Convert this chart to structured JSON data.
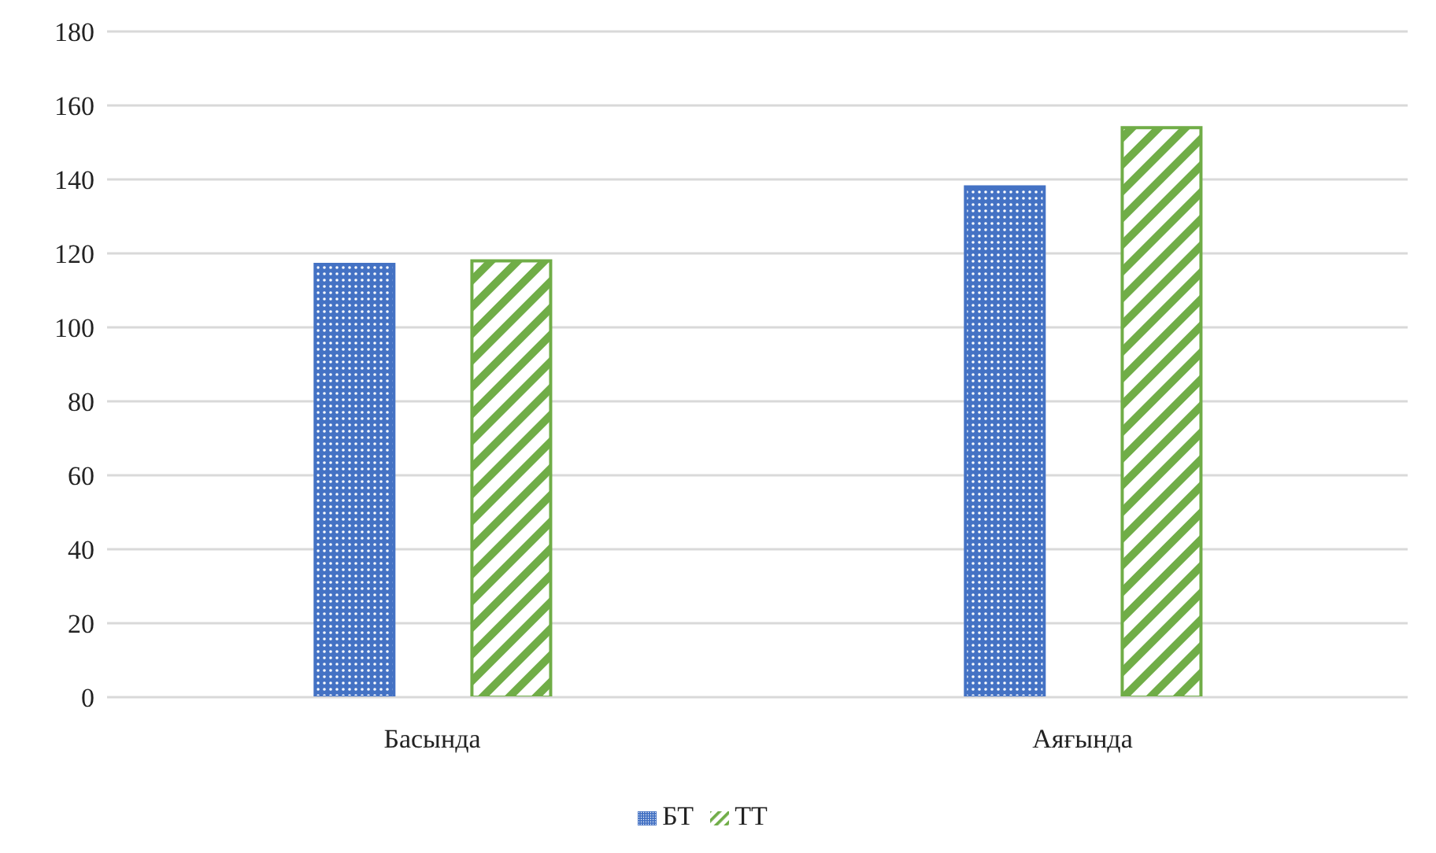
{
  "chart_data": {
    "type": "bar",
    "categories": [
      "Басында",
      "Аяғында"
    ],
    "series": [
      {
        "name": "БТ",
        "color": "#4472c4",
        "values": [
          117,
          138
        ]
      },
      {
        "name": "ТТ",
        "color": "#70ad47",
        "values": [
          118,
          154
        ]
      }
    ],
    "ylim": [
      0,
      180
    ],
    "yticks": [
      0,
      20,
      40,
      60,
      80,
      100,
      120,
      140,
      160,
      180
    ],
    "grid": "y",
    "legend": "bottom"
  }
}
